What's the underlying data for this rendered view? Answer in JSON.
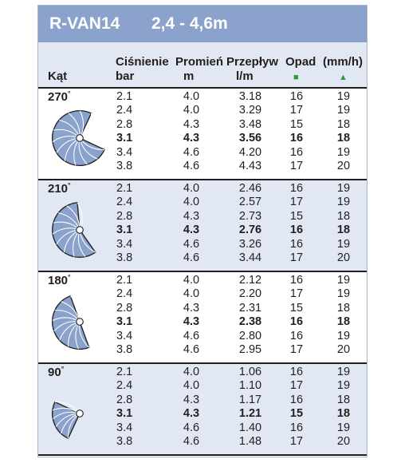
{
  "title": {
    "model": "R-VAN14",
    "range": "2,4 - 4,6m"
  },
  "headers": {
    "angle": "Kąt",
    "pressure": "Ciśnienie",
    "pressure_unit": "bar",
    "radius": "Promień",
    "radius_unit": "m",
    "flow": "Przepływ",
    "flow_unit": "l/m",
    "precip": "Opad",
    "precip_unit": "(mm/h)",
    "square_marker": "■",
    "triangle_marker": "▲"
  },
  "colors": {
    "title_bar": "#8ba3cc",
    "band": "#e2e8f3",
    "pattern_fill": "#8ba3cc",
    "marker": "#2e9a3e"
  },
  "sections": [
    {
      "angle": "270",
      "degree": "°",
      "sweep": 270,
      "rows": [
        {
          "p": "2.1",
          "r": "4.0",
          "f": "3.18",
          "sq": "16",
          "tri": "19"
        },
        {
          "p": "2.4",
          "r": "4.0",
          "f": "3.29",
          "sq": "17",
          "tri": "19"
        },
        {
          "p": "2.8",
          "r": "4.3",
          "f": "3.48",
          "sq": "15",
          "tri": "18"
        },
        {
          "p": "3.1",
          "r": "4.3",
          "f": "3.56",
          "sq": "16",
          "tri": "18",
          "bold": true
        },
        {
          "p": "3.4",
          "r": "4.6",
          "f": "4.20",
          "sq": "16",
          "tri": "19"
        },
        {
          "p": "3.8",
          "r": "4.6",
          "f": "4.43",
          "sq": "17",
          "tri": "20"
        }
      ]
    },
    {
      "angle": "210",
      "degree": "°",
      "sweep": 210,
      "rows": [
        {
          "p": "2.1",
          "r": "4.0",
          "f": "2.46",
          "sq": "16",
          "tri": "19"
        },
        {
          "p": "2.4",
          "r": "4.0",
          "f": "2.57",
          "sq": "17",
          "tri": "19"
        },
        {
          "p": "2.8",
          "r": "4.3",
          "f": "2.73",
          "sq": "15",
          "tri": "18"
        },
        {
          "p": "3.1",
          "r": "4.3",
          "f": "2.76",
          "sq": "16",
          "tri": "18",
          "bold": true
        },
        {
          "p": "3.4",
          "r": "4.6",
          "f": "3.26",
          "sq": "16",
          "tri": "19"
        },
        {
          "p": "3.8",
          "r": "4.6",
          "f": "3.44",
          "sq": "17",
          "tri": "20"
        }
      ]
    },
    {
      "angle": "180",
      "degree": "°",
      "sweep": 180,
      "rows": [
        {
          "p": "2.1",
          "r": "4.0",
          "f": "2.12",
          "sq": "16",
          "tri": "19"
        },
        {
          "p": "2.4",
          "r": "4.0",
          "f": "2.20",
          "sq": "17",
          "tri": "19"
        },
        {
          "p": "2.8",
          "r": "4.3",
          "f": "2.31",
          "sq": "15",
          "tri": "18"
        },
        {
          "p": "3.1",
          "r": "4.3",
          "f": "2.38",
          "sq": "16",
          "tri": "18",
          "bold": true
        },
        {
          "p": "3.4",
          "r": "4.6",
          "f": "2.80",
          "sq": "16",
          "tri": "19"
        },
        {
          "p": "3.8",
          "r": "4.6",
          "f": "2.95",
          "sq": "17",
          "tri": "20"
        }
      ]
    },
    {
      "angle": "90",
      "degree": "°",
      "sweep": 90,
      "rows": [
        {
          "p": "2.1",
          "r": "4.0",
          "f": "1.06",
          "sq": "16",
          "tri": "19"
        },
        {
          "p": "2.4",
          "r": "4.0",
          "f": "1.10",
          "sq": "17",
          "tri": "19"
        },
        {
          "p": "2.8",
          "r": "4.3",
          "f": "1.17",
          "sq": "16",
          "tri": "18"
        },
        {
          "p": "3.1",
          "r": "4.3",
          "f": "1.21",
          "sq": "15",
          "tri": "18",
          "bold": true
        },
        {
          "p": "3.4",
          "r": "4.6",
          "f": "1.40",
          "sq": "16",
          "tri": "19"
        },
        {
          "p": "3.8",
          "r": "4.6",
          "f": "1.48",
          "sq": "17",
          "tri": "20"
        }
      ]
    }
  ]
}
